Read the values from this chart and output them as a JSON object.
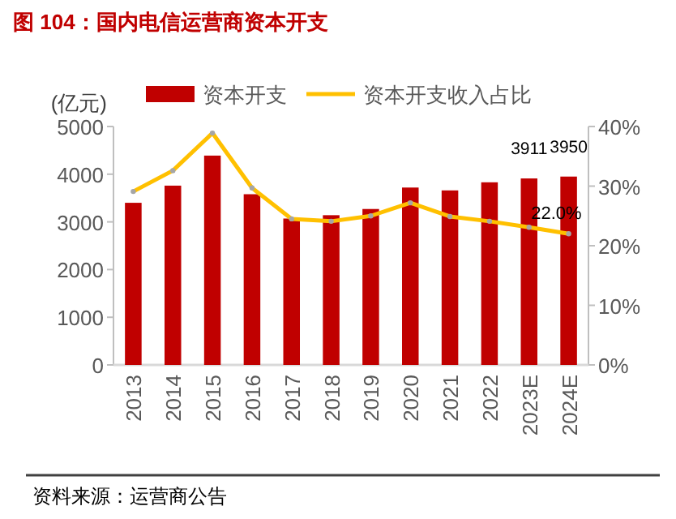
{
  "chart_data": {
    "type": "bar",
    "title": "图 104：国内电信运营商资本开支",
    "ylabel": "(亿元)",
    "categories": [
      "2013",
      "2014",
      "2015",
      "2016",
      "2017",
      "2018",
      "2019",
      "2020",
      "2021",
      "2022",
      "2023E",
      "2024E"
    ],
    "series": [
      {
        "name": "资本开支",
        "color": "#c00000",
        "values": [
          3400,
          3760,
          4390,
          3580,
          3070,
          3140,
          3270,
          3720,
          3660,
          3830,
          3911,
          3950
        ],
        "value_labels": [
          null,
          null,
          null,
          null,
          null,
          null,
          null,
          null,
          null,
          null,
          "3911",
          "3950"
        ]
      },
      {
        "name": "资本开支收入占比",
        "type": "line",
        "axis": "y2",
        "marker": "circle",
        "color": "#ffc000",
        "values": [
          29.1,
          32.6,
          38.9,
          29.7,
          24.5,
          24.1,
          25.0,
          27.2,
          24.9,
          24.1,
          23.1,
          22.0
        ],
        "value_labels": [
          null,
          null,
          null,
          null,
          null,
          null,
          null,
          null,
          null,
          null,
          null,
          "22.0%"
        ]
      }
    ],
    "ylim": [
      0,
      5000
    ],
    "yticks": [
      0,
      1000,
      2000,
      3000,
      4000,
      5000
    ],
    "y2lim": [
      0,
      40
    ],
    "y2ticks": [
      {
        "value": 0,
        "label": "0%"
      },
      {
        "value": 10,
        "label": "10%"
      },
      {
        "value": 20,
        "label": "20%"
      },
      {
        "value": 30,
        "label": "30%"
      },
      {
        "value": 40,
        "label": "40%"
      }
    ],
    "legend": "top",
    "grid": false,
    "annotations": [
      "资料来源：运营商公告"
    ]
  }
}
